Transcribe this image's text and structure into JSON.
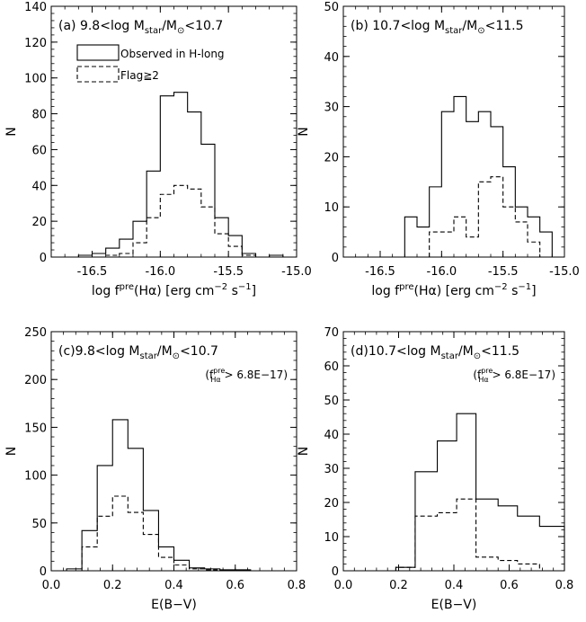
{
  "chart_data": [
    {
      "type": "histogram",
      "panel_label": "(a)",
      "title_parts": {
        "pre": "9.8<log M",
        "sub1": "star",
        "mid": "/M",
        "sub2": "⊙",
        "post": "<10.7"
      },
      "xlabel_parts": {
        "pre": "log f",
        "sup": "pre",
        "mid": "(H",
        "greek": "α",
        "mid2": ") [erg cm",
        "sup2": "−2",
        "mid3": " s",
        "sup3": "−1",
        "post": "]"
      },
      "ylabel": "N",
      "xlim": [
        -16.8,
        -15.0
      ],
      "ylim": [
        0,
        140
      ],
      "xticks": [
        -16.5,
        -16.0,
        -15.5,
        -15.0
      ],
      "xtick_labels": [
        "-16.5",
        "-16.0",
        "-15.5",
        "-15.0"
      ],
      "yticks": [
        0,
        20,
        40,
        60,
        80,
        100,
        120,
        140
      ],
      "legend": {
        "solid_label": "Observed in H-long",
        "dashed_label": "Flag≧2"
      },
      "series": [
        {
          "name": "Observed in H-long",
          "style": "solid",
          "bin_edges": [
            -16.6,
            -16.5,
            -16.4,
            -16.3,
            -16.2,
            -16.1,
            -16.0,
            -15.9,
            -15.8,
            -15.7,
            -15.6,
            -15.5,
            -15.4,
            -15.3,
            -15.2,
            -15.1,
            -15.0
          ],
          "counts": [
            1,
            2,
            5,
            10,
            20,
            48,
            90,
            92,
            81,
            63,
            22,
            12,
            2,
            0,
            1,
            0
          ]
        },
        {
          "name": "Flag≧2",
          "style": "dashed",
          "bin_edges": [
            -16.6,
            -16.5,
            -16.4,
            -16.3,
            -16.2,
            -16.1,
            -16.0,
            -15.9,
            -15.8,
            -15.7,
            -15.6,
            -15.5,
            -15.4,
            -15.3,
            -15.2,
            -15.1,
            -15.0
          ],
          "counts": [
            0,
            0,
            1,
            2,
            8,
            22,
            35,
            40,
            38,
            28,
            13,
            6,
            1,
            0,
            0,
            0
          ]
        }
      ]
    },
    {
      "type": "histogram",
      "panel_label": "(b)",
      "title_parts": {
        "pre": "10.7<log M",
        "sub1": "star",
        "mid": "/M",
        "sub2": "⊙",
        "post": "<11.5"
      },
      "xlabel_parts": {
        "pre": "log f",
        "sup": "pre",
        "mid": "(H",
        "greek": "α",
        "mid2": ") [erg cm",
        "sup2": "−2",
        "mid3": " s",
        "sup3": "−1",
        "post": "]"
      },
      "ylabel": "N",
      "xlim": [
        -16.8,
        -15.0
      ],
      "ylim": [
        0,
        50
      ],
      "xticks": [
        -16.5,
        -16.0,
        -15.5,
        -15.0
      ],
      "xtick_labels": [
        "-16.5",
        "-16.0",
        "-15.5",
        "-15.0"
      ],
      "yticks": [
        0,
        10,
        20,
        30,
        40,
        50
      ],
      "series": [
        {
          "name": "Observed in H-long",
          "style": "solid",
          "bin_edges": [
            -16.3,
            -16.2,
            -16.1,
            -16.0,
            -15.9,
            -15.8,
            -15.7,
            -15.6,
            -15.5,
            -15.4,
            -15.3,
            -15.2,
            -15.1
          ],
          "counts": [
            8,
            6,
            14,
            29,
            32,
            27,
            29,
            26,
            18,
            10,
            8,
            5
          ]
        },
        {
          "name": "Flag≧2",
          "style": "dashed",
          "bin_edges": [
            -16.1,
            -16.0,
            -15.9,
            -15.8,
            -15.7,
            -15.6,
            -15.5,
            -15.4,
            -15.3,
            -15.2
          ],
          "counts": [
            5,
            5,
            8,
            4,
            15,
            16,
            10,
            7,
            3
          ]
        }
      ]
    },
    {
      "type": "histogram",
      "panel_label": "(c)",
      "title_parts": {
        "pre": "9.8<log M",
        "sub1": "star",
        "mid": "/M",
        "sub2": "⊙",
        "post": "<10.7"
      },
      "subtitle_parts": {
        "pre": "(f",
        "sup": "pre",
        "sub": "Hα",
        "post": " > 6.8E−17)"
      },
      "xlabel": "E(B−V)",
      "ylabel": "N",
      "xlim": [
        0.0,
        0.8
      ],
      "ylim": [
        0,
        250
      ],
      "xticks": [
        0.0,
        0.2,
        0.4,
        0.6,
        0.8
      ],
      "xtick_labels": [
        "0.0",
        "0.2",
        "0.4",
        "0.6",
        "0.8"
      ],
      "yticks": [
        0,
        50,
        100,
        150,
        200,
        250
      ],
      "series": [
        {
          "name": "Observed in H-long",
          "style": "solid",
          "bin_edges": [
            0.05,
            0.1,
            0.15,
            0.2,
            0.25,
            0.3,
            0.35,
            0.4,
            0.45,
            0.5,
            0.55,
            0.6,
            0.65,
            0.7,
            0.75
          ],
          "counts": [
            2,
            42,
            110,
            158,
            128,
            63,
            25,
            11,
            3,
            2,
            1,
            1,
            0,
            0
          ]
        },
        {
          "name": "Flag≧2",
          "style": "dashed",
          "bin_edges": [
            0.05,
            0.1,
            0.15,
            0.2,
            0.25,
            0.3,
            0.35,
            0.4,
            0.45,
            0.5,
            0.55,
            0.6,
            0.65,
            0.7,
            0.75
          ],
          "counts": [
            0,
            25,
            57,
            78,
            61,
            38,
            14,
            6,
            2,
            1,
            0,
            0,
            0,
            0
          ]
        }
      ]
    },
    {
      "type": "histogram",
      "panel_label": "(d)",
      "title_parts": {
        "pre": "10.7<log M",
        "sub1": "star",
        "mid": "/M",
        "sub2": "⊙",
        "post": "<11.5"
      },
      "subtitle_parts": {
        "pre": "(f",
        "sup": "pre",
        "sub": "Hα",
        "post": " > 6.8E−17)"
      },
      "xlabel": "E(B−V)",
      "ylabel": "N",
      "xlim": [
        0.0,
        0.8
      ],
      "ylim": [
        0,
        70
      ],
      "xticks": [
        0.0,
        0.2,
        0.4,
        0.6,
        0.8
      ],
      "xtick_labels": [
        "0.0",
        "0.2",
        "0.4",
        "0.6",
        "0.8"
      ],
      "yticks": [
        0,
        10,
        20,
        30,
        40,
        50,
        60,
        70
      ],
      "series": [
        {
          "name": "Observed in H-long",
          "style": "solid",
          "bin_edges": [
            0.19,
            0.26,
            0.34,
            0.41,
            0.48,
            0.56,
            0.63,
            0.71,
            0.8
          ],
          "counts": [
            1,
            29,
            38,
            46,
            21,
            19,
            16,
            13
          ]
        },
        {
          "name": "Flag≧2",
          "style": "dashed",
          "bin_edges": [
            0.19,
            0.26,
            0.34,
            0.41,
            0.48,
            0.56,
            0.63,
            0.71
          ],
          "counts": [
            1,
            16,
            17,
            21,
            4,
            3,
            2
          ]
        }
      ]
    }
  ]
}
